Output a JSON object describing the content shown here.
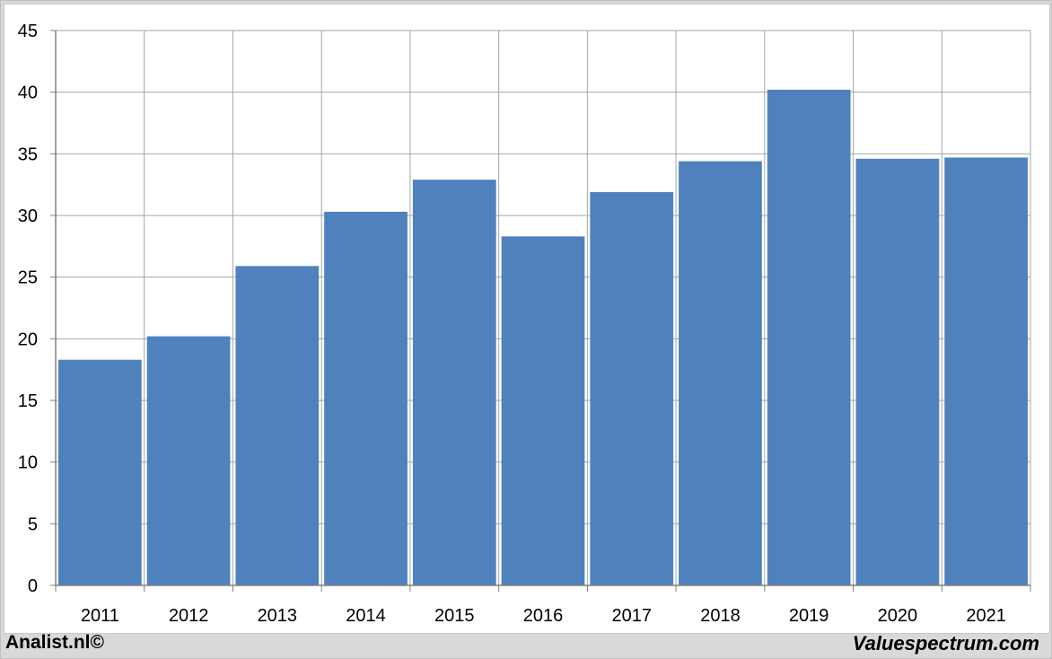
{
  "footer": {
    "left_text": "Analist.nl©",
    "right_text": "Valuespectrum.com"
  },
  "colors": {
    "bar": "#4f81bd",
    "grid": "#a6a6a6",
    "axis": "#808080"
  },
  "chart_data": {
    "type": "bar",
    "title": "",
    "xlabel": "",
    "ylabel": "",
    "categories": [
      "2011",
      "2012",
      "2013",
      "2014",
      "2015",
      "2016",
      "2017",
      "2018",
      "2019",
      "2020",
      "2021"
    ],
    "values": [
      18.3,
      20.2,
      25.9,
      30.3,
      32.9,
      28.3,
      31.9,
      34.4,
      40.2,
      34.6,
      34.7
    ],
    "ylim": [
      0,
      45
    ],
    "yticks": [
      0,
      5,
      10,
      15,
      20,
      25,
      30,
      35,
      40,
      45
    ],
    "grid": true,
    "legend": "none"
  }
}
